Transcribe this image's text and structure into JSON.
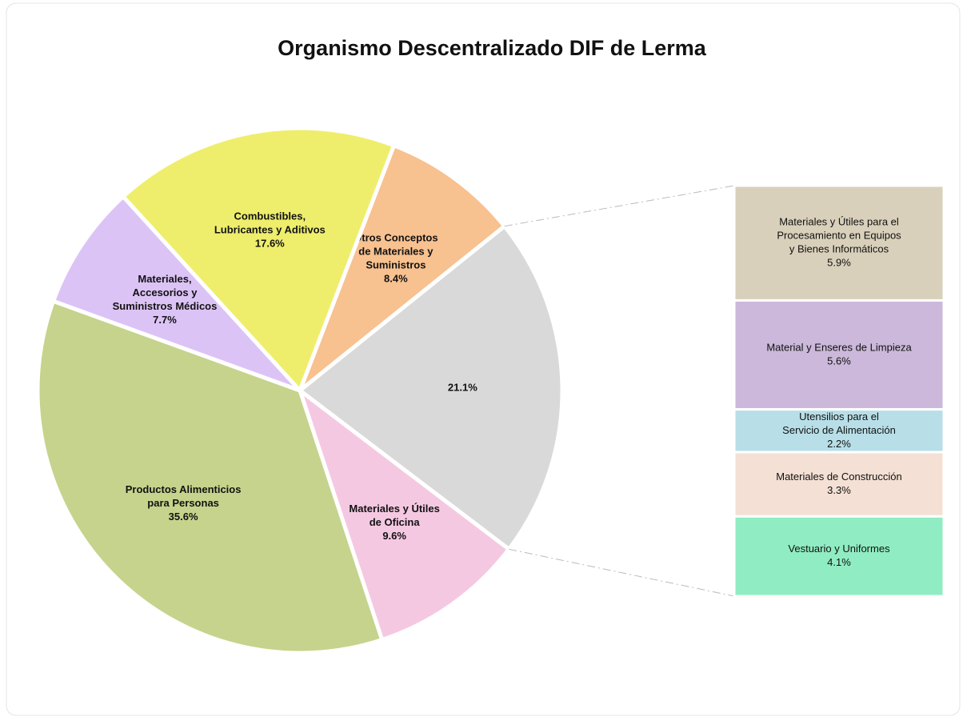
{
  "chart_data": {
    "type": "pie",
    "title": "Organismo Descentralizado DIF de Lerma",
    "categories": [
      [
        "Otros Conceptos",
        "de Materiales y",
        "Suministros"
      ],
      null,
      [
        "Materiales y Útiles",
        "de Oficina"
      ],
      [
        "Productos Alimenticios",
        "para Personas"
      ],
      [
        "Materiales,",
        "Accesorios y",
        "Suministros Médicos"
      ],
      [
        "Combustibles,",
        "Lubricantes y Aditivos"
      ]
    ],
    "values": [
      8.4,
      21.1,
      9.6,
      35.6,
      7.7,
      17.6
    ],
    "value_labels": [
      "8.4%",
      "21.1%",
      "9.6%",
      "35.6%",
      "7.7%",
      "17.6%"
    ],
    "colors": [
      "#f8c190",
      "#d9d9d9",
      "#f5c8e2",
      "#c6d38c",
      "#dcc3f5",
      "#eeee6c"
    ],
    "breakdown": {
      "categories": [
        [
          "Materiales y  Útiles para el",
          "Procesamiento en Equipos",
          "y  Bienes Informáticos"
        ],
        [
          "Material y  Enseres de Limpieza"
        ],
        [
          "Utensilios  para el",
          "Servicio  de  Alimentación"
        ],
        [
          "Materiales de Construcción"
        ],
        [
          "Vestuario y Uniformes"
        ]
      ],
      "values": [
        5.9,
        5.6,
        2.2,
        3.3,
        4.1
      ],
      "value_labels": [
        "5.9%",
        "5.6%",
        "2.2%",
        "3.3%",
        "4.1%"
      ],
      "colors": [
        "#d9d0bb",
        "#cbb8da",
        "#b8dfe8",
        "#f4e0d4",
        "#90ecc2"
      ]
    }
  }
}
